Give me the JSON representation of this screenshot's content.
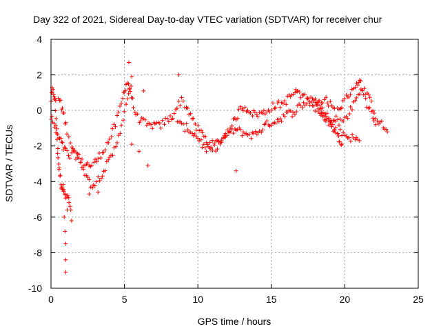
{
  "chart_data": {
    "type": "scatter",
    "title": "Day 322 of 2021, Sidereal Day-to-day VTEC variation (SDTVAR) for receiver chur",
    "xlabel": "GPS time / hours",
    "ylabel": "SDTVAR / TECUs",
    "xlim": [
      0,
      25
    ],
    "ylim": [
      -10,
      4
    ],
    "xticks": [
      0,
      5,
      10,
      15,
      20,
      25
    ],
    "yticks": [
      -10,
      -8,
      -6,
      -4,
      -2,
      0,
      2,
      4
    ],
    "grid": true,
    "marker": "+",
    "marker_color": "#ff0000",
    "series": [
      {
        "name": "SDTVAR",
        "tracks": [
          [
            [
              0.0,
              0.6
            ],
            [
              0.1,
              1.1
            ],
            [
              0.2,
              0.9
            ],
            [
              0.3,
              0.4
            ],
            [
              0.35,
              -0.8
            ],
            [
              0.45,
              -2.0
            ],
            [
              0.5,
              -3.0
            ],
            [
              0.6,
              -3.6
            ],
            [
              0.7,
              -4.2
            ],
            [
              0.8,
              -4.4
            ],
            [
              0.9,
              -4.3
            ],
            [
              1.0,
              -4.8
            ],
            [
              1.2,
              -5.0
            ],
            [
              1.35,
              -5.6
            ]
          ],
          [
            [
              0.0,
              -0.4
            ],
            [
              0.2,
              -0.8
            ],
            [
              0.4,
              -1.4
            ],
            [
              0.6,
              -1.6
            ],
            [
              0.8,
              -2.0
            ],
            [
              1.0,
              -2.3
            ],
            [
              1.3,
              -2.6
            ],
            [
              1.6,
              -2.4
            ],
            [
              2.0,
              -2.9
            ],
            [
              2.4,
              -3.0
            ],
            [
              2.8,
              -3.1
            ],
            [
              3.2,
              -2.7
            ],
            [
              3.6,
              -2.2
            ],
            [
              4.0,
              -1.6
            ],
            [
              4.4,
              -0.8
            ],
            [
              4.8,
              0.4
            ],
            [
              5.0,
              1.2
            ],
            [
              5.2,
              1.6
            ],
            [
              5.4,
              1.1
            ],
            [
              5.6,
              0.2
            ],
            [
              5.9,
              -0.4
            ],
            [
              6.2,
              -0.6
            ],
            [
              6.6,
              -0.9
            ],
            [
              7.0,
              -0.8
            ],
            [
              7.4,
              -0.9
            ],
            [
              7.8,
              -0.6
            ],
            [
              8.2,
              -0.4
            ],
            [
              8.6,
              0.2
            ],
            [
              8.9,
              0.6
            ],
            [
              9.2,
              0.2
            ],
            [
              9.5,
              -0.2
            ],
            [
              9.8,
              -0.9
            ],
            [
              10.2,
              -1.2
            ],
            [
              10.6,
              -1.7
            ],
            [
              11.0,
              -1.9
            ],
            [
              11.4,
              -1.8
            ],
            [
              11.8,
              -1.5
            ],
            [
              12.2,
              -1.0
            ],
            [
              12.6,
              -0.4
            ],
            [
              13.0,
              0.2
            ],
            [
              13.4,
              0.1
            ],
            [
              13.8,
              -0.2
            ],
            [
              14.2,
              -0.2
            ],
            [
              14.6,
              -0.1
            ],
            [
              15.0,
              0.2
            ],
            [
              15.4,
              0.3
            ],
            [
              15.8,
              0.4
            ],
            [
              16.2,
              0.7
            ],
            [
              16.6,
              1.0
            ],
            [
              16.8,
              1.1
            ]
          ],
          [
            [
              0.5,
              0.7
            ],
            [
              0.7,
              0.2
            ],
            [
              0.9,
              -0.3
            ],
            [
              1.1,
              -1.1
            ],
            [
              1.4,
              -2.0
            ],
            [
              1.8,
              -2.5
            ],
            [
              2.2,
              -3.2
            ],
            [
              2.5,
              -3.9
            ],
            [
              2.8,
              -4.2
            ],
            [
              3.1,
              -4.0
            ],
            [
              3.4,
              -3.6
            ],
            [
              3.8,
              -3.1
            ],
            [
              4.2,
              -2.5
            ],
            [
              4.6,
              -1.4
            ],
            [
              5.0,
              -0.1
            ],
            [
              5.3,
              0.8
            ],
            [
              5.5,
              1.9
            ]
          ],
          [
            [
              8.6,
              -0.6
            ],
            [
              8.9,
              -0.9
            ],
            [
              9.3,
              -1.0
            ],
            [
              9.7,
              -1.3
            ],
            [
              10.1,
              -1.6
            ],
            [
              10.5,
              -2.2
            ],
            [
              10.9,
              -2.3
            ],
            [
              11.3,
              -2.0
            ],
            [
              11.7,
              -1.6
            ],
            [
              12.1,
              -1.2
            ],
            [
              12.5,
              -1.1
            ],
            [
              12.9,
              -1.2
            ],
            [
              13.3,
              -1.3
            ],
            [
              13.7,
              -1.4
            ],
            [
              14.1,
              -1.2
            ],
            [
              14.5,
              -0.9
            ],
            [
              14.9,
              -0.7
            ],
            [
              15.3,
              -0.6
            ],
            [
              15.7,
              -0.4
            ],
            [
              16.1,
              -0.2
            ],
            [
              16.5,
              -0.1
            ],
            [
              16.9,
              0.2
            ],
            [
              17.3,
              0.4
            ],
            [
              17.7,
              0.7
            ],
            [
              18.0,
              0.6
            ],
            [
              18.4,
              0.1
            ],
            [
              18.8,
              -0.5
            ],
            [
              19.2,
              -1.0
            ],
            [
              19.6,
              -1.6
            ],
            [
              19.8,
              -1.9
            ]
          ],
          [
            [
              17.9,
              0.5
            ],
            [
              18.3,
              0.0
            ],
            [
              18.7,
              -0.4
            ],
            [
              19.1,
              -0.8
            ],
            [
              19.5,
              -1.2
            ],
            [
              19.9,
              -1.3
            ],
            [
              20.3,
              -1.5
            ],
            [
              20.7,
              -1.6
            ],
            [
              21.0,
              -1.7
            ]
          ],
          [
            [
              18.2,
              0.4
            ],
            [
              18.6,
              0.7
            ],
            [
              19.0,
              0.3
            ],
            [
              19.4,
              -0.1
            ],
            [
              19.8,
              0.3
            ],
            [
              20.2,
              0.8
            ],
            [
              20.6,
              1.3
            ],
            [
              20.9,
              1.6
            ],
            [
              21.1,
              1.5
            ],
            [
              21.4,
              1.0
            ],
            [
              21.8,
              0.4
            ],
            [
              22.2,
              -0.5
            ],
            [
              22.6,
              -0.9
            ],
            [
              22.9,
              -1.2
            ]
          ],
          [
            [
              16.9,
              0.9
            ],
            [
              17.3,
              0.7
            ],
            [
              17.7,
              0.4
            ],
            [
              18.1,
              0.1
            ],
            [
              18.5,
              -0.2
            ],
            [
              18.9,
              -0.4
            ],
            [
              19.3,
              -0.6
            ],
            [
              19.6,
              -0.7
            ],
            [
              20.0,
              -0.5
            ],
            [
              20.4,
              0.0
            ],
            [
              20.8,
              0.7
            ],
            [
              21.2,
              1.2
            ],
            [
              21.5,
              0.4
            ],
            [
              21.8,
              -0.2
            ],
            [
              22.1,
              -0.8
            ]
          ]
        ],
        "scatter_points": [
          [
            0.9,
            -6.0
          ],
          [
            0.95,
            -6.8
          ],
          [
            1.0,
            -7.5
          ],
          [
            1.0,
            -8.4
          ],
          [
            1.0,
            -9.1
          ],
          [
            1.4,
            -6.2
          ],
          [
            1.1,
            -5.6
          ],
          [
            12.6,
            -3.4
          ],
          [
            6.0,
            -2.3
          ],
          [
            6.6,
            -3.1
          ],
          [
            5.5,
            -1.9
          ],
          [
            8.7,
            2.0
          ],
          [
            5.3,
            2.7
          ],
          [
            6.3,
            1.1
          ],
          [
            3.2,
            -4.6
          ],
          [
            2.6,
            -4.7
          ]
        ]
      }
    ]
  }
}
